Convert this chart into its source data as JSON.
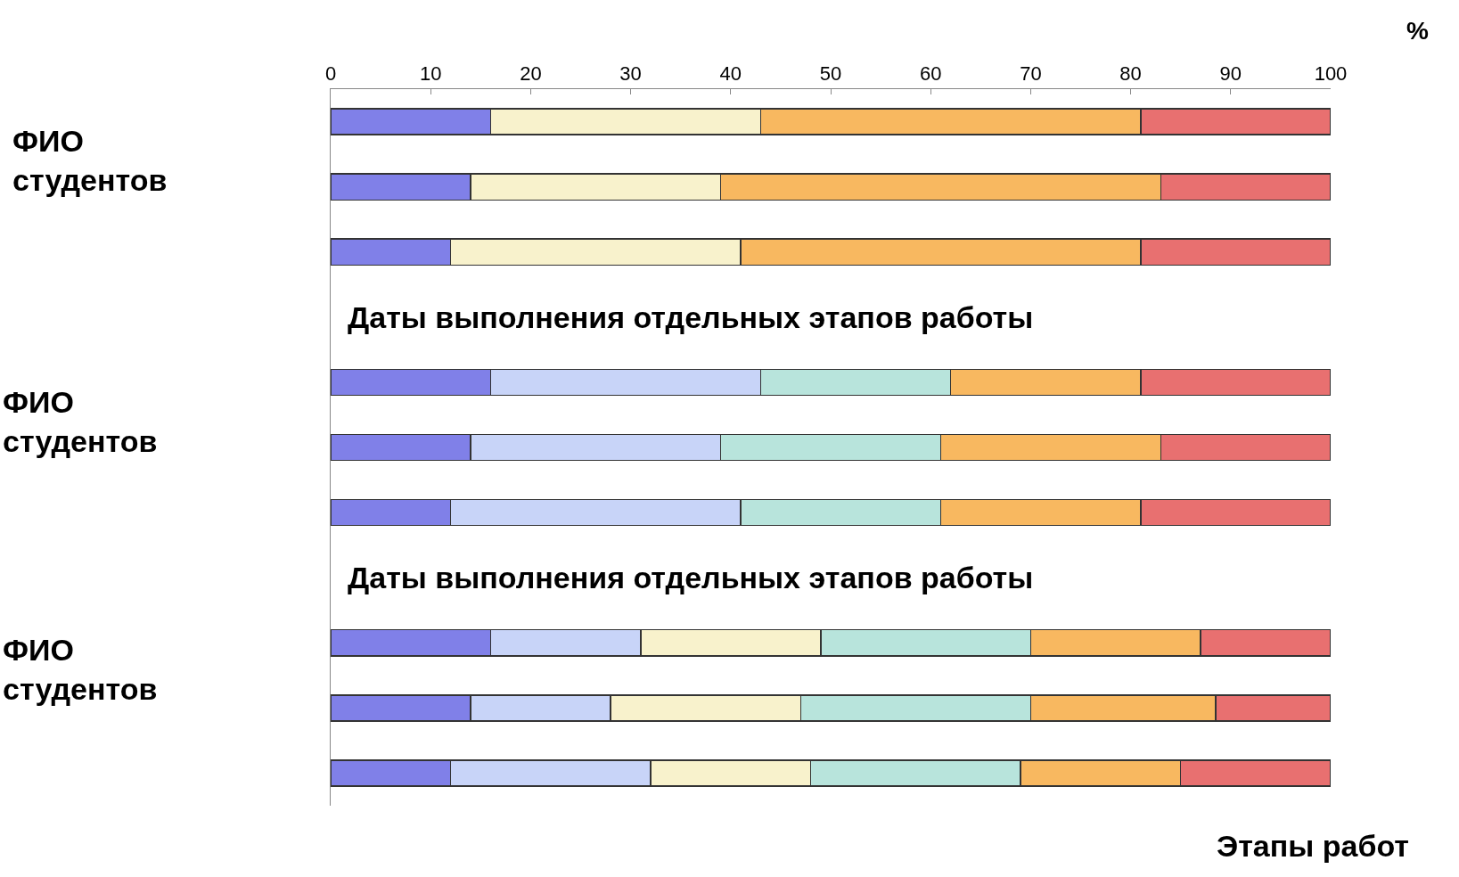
{
  "chart_data": {
    "type": "bar",
    "orientation": "horizontal",
    "stacked": true,
    "categories": [
      null,
      null,
      null,
      null,
      null,
      null,
      null,
      null,
      null,
      null,
      null
    ],
    "series": [
      {
        "color": "#8080e8",
        "values": [
          16,
          14,
          12,
          null,
          16,
          14,
          12,
          null,
          16,
          14,
          12
        ]
      },
      {
        "color": "#c8d4f8",
        "values": [
          null,
          null,
          null,
          null,
          27,
          25,
          29,
          null,
          15,
          14,
          20
        ]
      },
      {
        "color": "#f8f2cc",
        "values": [
          27,
          25,
          29,
          null,
          null,
          null,
          null,
          null,
          18,
          19,
          16
        ]
      },
      {
        "color": "#b8e4dc",
        "values": [
          null,
          null,
          null,
          null,
          19,
          22,
          20,
          null,
          21,
          23,
          21
        ]
      },
      {
        "color": "#f8b860",
        "values": [
          38,
          44,
          40,
          null,
          19,
          22,
          20,
          null,
          17,
          18.5,
          16
        ]
      },
      {
        "color": "#e87070",
        "values": [
          19,
          17,
          19,
          null,
          19,
          17,
          19,
          null,
          13,
          11.5,
          15
        ]
      }
    ],
    "xlim": [
      0,
      100
    ],
    "xticks": [
      0,
      10,
      20,
      30,
      40,
      50,
      60,
      70,
      80,
      90,
      100
    ],
    "tick_labels": "x",
    "annotations": [
      "ФИО\nстудентов",
      "ФИО\nстудентов",
      "ФИО\nстудентов",
      "Даты выполнения отдельных этапов работы",
      "Даты выполнения отдельных этапов работы",
      "Этапы работ",
      "%"
    ]
  }
}
